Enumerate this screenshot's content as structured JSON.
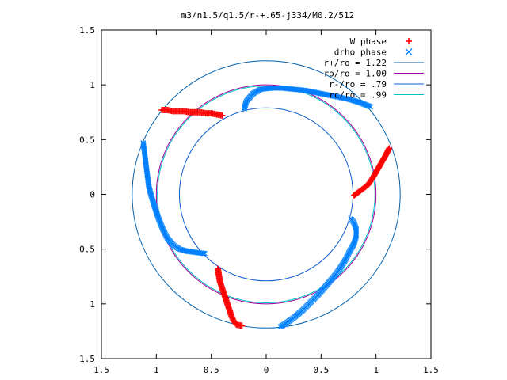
{
  "chart_data": {
    "type": "scatter",
    "title": "m3/n1.5/q1.5/r-+.65-j334/M0.2/512",
    "xlabel": "",
    "ylabel": "",
    "xlim": [
      -1.5,
      1.5
    ],
    "ylim": [
      -1.5,
      1.5
    ],
    "x_ticks": [
      -1.5,
      -1,
      -0.5,
      0,
      0.5,
      1,
      1.5
    ],
    "y_ticks": [
      -1.5,
      -1,
      -0.5,
      0,
      0.5,
      1,
      1.5
    ],
    "x_tick_labels": [
      "1.5",
      "1",
      "0.5",
      "0",
      "0.5",
      "1",
      "1.5"
    ],
    "y_tick_labels": [
      "1.5",
      "1",
      "0.5",
      "0",
      "0.5",
      "1",
      "1.5"
    ],
    "grid": false,
    "legend_position": "top-right",
    "series": [
      {
        "name": "W phase",
        "marker": "+",
        "color": "#ff0000",
        "points": [
          [
            -0.95,
            0.77
          ],
          [
            -0.9,
            0.77
          ],
          [
            -0.85,
            0.76
          ],
          [
            -0.8,
            0.76
          ],
          [
            -0.75,
            0.76
          ],
          [
            -0.7,
            0.75
          ],
          [
            -0.65,
            0.75
          ],
          [
            -0.6,
            0.75
          ],
          [
            -0.55,
            0.74
          ],
          [
            -0.5,
            0.74
          ],
          [
            -0.45,
            0.73
          ],
          [
            -0.4,
            0.72
          ],
          [
            1.12,
            0.42
          ],
          [
            1.09,
            0.36
          ],
          [
            1.05,
            0.29
          ],
          [
            1.01,
            0.22
          ],
          [
            0.97,
            0.15
          ],
          [
            0.93,
            0.09
          ],
          [
            0.88,
            0.05
          ],
          [
            0.84,
            0.02
          ],
          [
            0.8,
            -0.01
          ],
          [
            -0.44,
            -0.68
          ],
          [
            -0.43,
            -0.74
          ],
          [
            -0.42,
            -0.8
          ],
          [
            -0.4,
            -0.86
          ],
          [
            -0.38,
            -0.92
          ],
          [
            -0.36,
            -0.98
          ],
          [
            -0.34,
            -1.04
          ],
          [
            -0.32,
            -1.1
          ],
          [
            -0.3,
            -1.15
          ],
          [
            -0.27,
            -1.19
          ],
          [
            -0.22,
            -1.2
          ]
        ]
      },
      {
        "name": "drho phase",
        "marker": "x",
        "color": "#0080ff",
        "points": [
          [
            -0.2,
            0.78
          ],
          [
            -0.18,
            0.85
          ],
          [
            -0.12,
            0.92
          ],
          [
            -0.05,
            0.96
          ],
          [
            0.05,
            0.97
          ],
          [
            0.15,
            0.97
          ],
          [
            0.25,
            0.96
          ],
          [
            0.35,
            0.95
          ],
          [
            0.45,
            0.93
          ],
          [
            0.55,
            0.91
          ],
          [
            0.65,
            0.89
          ],
          [
            0.75,
            0.87
          ],
          [
            0.85,
            0.84
          ],
          [
            0.95,
            0.8
          ],
          [
            -1.12,
            0.47
          ],
          [
            -1.11,
            0.4
          ],
          [
            -1.1,
            0.32
          ],
          [
            -1.09,
            0.24
          ],
          [
            -1.08,
            0.16
          ],
          [
            -1.07,
            0.08
          ],
          [
            -1.05,
            0.0
          ],
          [
            -1.02,
            -0.1
          ],
          [
            -0.98,
            -0.22
          ],
          [
            -0.94,
            -0.32
          ],
          [
            -0.9,
            -0.4
          ],
          [
            -0.85,
            -0.46
          ],
          [
            -0.79,
            -0.5
          ],
          [
            -0.72,
            -0.52
          ],
          [
            -0.64,
            -0.53
          ],
          [
            -0.56,
            -0.54
          ],
          [
            0.77,
            -0.22
          ],
          [
            0.8,
            -0.26
          ],
          [
            0.82,
            -0.32
          ],
          [
            0.82,
            -0.38
          ],
          [
            0.8,
            -0.45
          ],
          [
            0.76,
            -0.52
          ],
          [
            0.72,
            -0.6
          ],
          [
            0.67,
            -0.68
          ],
          [
            0.61,
            -0.76
          ],
          [
            0.54,
            -0.84
          ],
          [
            0.47,
            -0.92
          ],
          [
            0.4,
            -0.99
          ],
          [
            0.33,
            -1.06
          ],
          [
            0.26,
            -1.12
          ],
          [
            0.19,
            -1.17
          ],
          [
            0.13,
            -1.21
          ]
        ]
      }
    ],
    "circles": [
      {
        "label": "r+/ro = 1.22",
        "radius": 1.22,
        "color": "#0060ad"
      },
      {
        "label": "ro/ro = 1.00",
        "radius": 1.0,
        "color": "#a000a0"
      },
      {
        "label": "r-/ro = .79",
        "radius": 0.79,
        "color": "#1060d0"
      },
      {
        "label": "rc/ro = .99",
        "radius": 0.99,
        "color": "#00c0c0"
      }
    ]
  }
}
